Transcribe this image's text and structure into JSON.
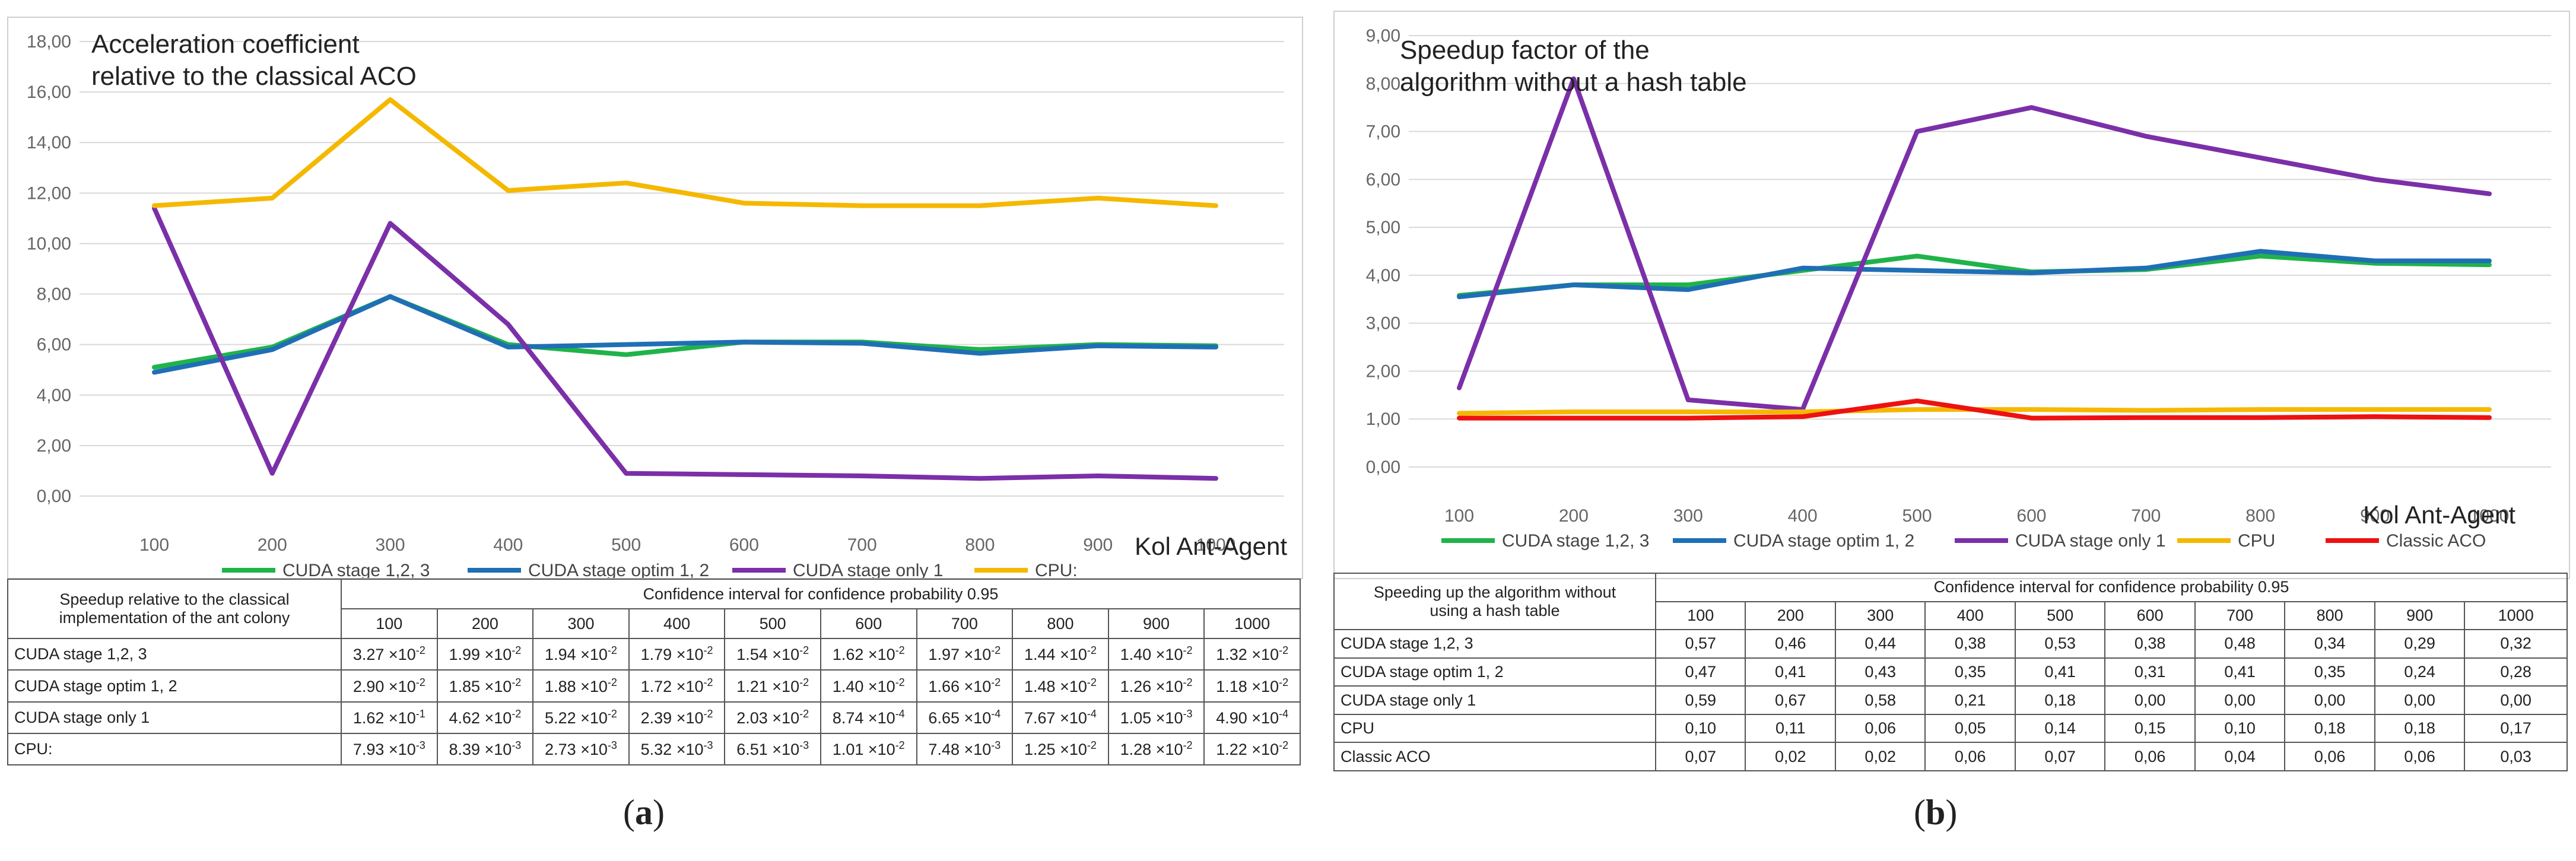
{
  "chart_data": [
    {
      "type": "line",
      "id": "a",
      "title_lines": [
        "Acceleration coefficient",
        "relative to the classical ACO"
      ],
      "xlabel": "Kol Ant-Agent",
      "ylabel": "",
      "categories": [
        "100",
        "200",
        "300",
        "400",
        "500",
        "600",
        "700",
        "800",
        "900",
        "1000"
      ],
      "ylim": [
        0,
        18
      ],
      "ytick_labels": [
        "0,00",
        "2,00",
        "4,00",
        "6,00",
        "8,00",
        "10,00",
        "12,00",
        "14,00",
        "16,00",
        "18,00"
      ],
      "series": [
        {
          "name": "CUDA stage 1,2, 3",
          "color": "#1fb34a",
          "values": [
            5.1,
            5.9,
            7.9,
            6.0,
            5.6,
            6.1,
            6.1,
            5.8,
            6.0,
            5.95
          ]
        },
        {
          "name": "CUDA stage optim 1, 2",
          "color": "#1f6fb5",
          "values": [
            4.9,
            5.8,
            7.9,
            5.9,
            6.0,
            6.1,
            6.05,
            5.65,
            5.95,
            5.9
          ]
        },
        {
          "name": "CUDA stage only 1",
          "color": "#7b2fa8",
          "values": [
            11.4,
            0.9,
            10.8,
            6.8,
            0.9,
            0.85,
            0.8,
            0.7,
            0.8,
            0.7
          ]
        },
        {
          "name": "CPU:",
          "color": "#f5b800",
          "values": [
            11.5,
            11.8,
            15.7,
            12.1,
            12.4,
            11.6,
            11.5,
            11.5,
            11.8,
            11.5
          ]
        }
      ]
    },
    {
      "type": "line",
      "id": "b",
      "title_lines": [
        "Speedup factor of the",
        "algorithm without a hash table"
      ],
      "xlabel": "Kol Ant-Agent",
      "ylabel": "",
      "categories": [
        "100",
        "200",
        "300",
        "400",
        "500",
        "600",
        "700",
        "800",
        "900",
        "1000"
      ],
      "ylim": [
        0,
        9
      ],
      "ytick_labels": [
        "0,00",
        "1,00",
        "2,00",
        "3,00",
        "4,00",
        "5,00",
        "6,00",
        "7,00",
        "8,00",
        "9,00"
      ],
      "series": [
        {
          "name": "CUDA stage 1,2, 3",
          "color": "#1fb34a",
          "values": [
            3.58,
            3.8,
            3.8,
            4.1,
            4.4,
            4.07,
            4.12,
            4.4,
            4.25,
            4.22
          ]
        },
        {
          "name": "CUDA stage optim 1, 2",
          "color": "#1f6fb5",
          "values": [
            3.55,
            3.8,
            3.7,
            4.15,
            4.1,
            4.05,
            4.15,
            4.5,
            4.3,
            4.3
          ]
        },
        {
          "name": "CUDA stage only 1",
          "color": "#7b2fa8",
          "values": [
            1.65,
            8.1,
            1.4,
            1.2,
            7.0,
            7.5,
            6.9,
            6.45,
            6.0,
            5.7
          ]
        },
        {
          "name": "CPU",
          "color": "#f5b800",
          "values": [
            1.12,
            1.15,
            1.15,
            1.15,
            1.2,
            1.2,
            1.18,
            1.2,
            1.2,
            1.2
          ]
        },
        {
          "name": "Classic ACO",
          "color": "#ee1111",
          "values": [
            1.02,
            1.02,
            1.02,
            1.05,
            1.38,
            1.02,
            1.03,
            1.03,
            1.05,
            1.03
          ]
        }
      ]
    }
  ],
  "table_a": {
    "row_header_line1": "Speedup relative to the classical",
    "row_header_line2": "implementation of the ant colony",
    "group_header": "Confidence interval for confidence probability 0.95",
    "columns": [
      "100",
      "200",
      "300",
      "400",
      "500",
      "600",
      "700",
      "800",
      "900",
      "1000"
    ],
    "rows": [
      {
        "label": "CUDA stage 1,2, 3",
        "cells": [
          {
            "m": "3.27",
            "e": "-2"
          },
          {
            "m": "1.99",
            "e": "-2"
          },
          {
            "m": "1.94",
            "e": "-2"
          },
          {
            "m": "1.79",
            "e": "-2"
          },
          {
            "m": "1.54",
            "e": "-2"
          },
          {
            "m": "1.62",
            "e": "-2"
          },
          {
            "m": "1.97",
            "e": "-2"
          },
          {
            "m": "1.44",
            "e": "-2"
          },
          {
            "m": "1.40",
            "e": "-2"
          },
          {
            "m": "1.32",
            "e": "-2"
          }
        ]
      },
      {
        "label": "CUDA stage optim 1, 2",
        "cells": [
          {
            "m": "2.90",
            "e": "-2"
          },
          {
            "m": "1.85",
            "e": "-2"
          },
          {
            "m": "1.88",
            "e": "-2"
          },
          {
            "m": "1.72",
            "e": "-2"
          },
          {
            "m": "1.21",
            "e": "-2"
          },
          {
            "m": "1.40",
            "e": "-2"
          },
          {
            "m": "1.66",
            "e": "-2"
          },
          {
            "m": "1.48",
            "e": "-2"
          },
          {
            "m": "1.26",
            "e": "-2"
          },
          {
            "m": "1.18",
            "e": "-2"
          }
        ]
      },
      {
        "label": "CUDA stage only 1",
        "cells": [
          {
            "m": "1.62",
            "e": "-1"
          },
          {
            "m": "4.62",
            "e": "-2"
          },
          {
            "m": "5.22",
            "e": "-2"
          },
          {
            "m": "2.39",
            "e": "-2"
          },
          {
            "m": "2.03",
            "e": "-2"
          },
          {
            "m": "8.74",
            "e": "-4"
          },
          {
            "m": "6.65",
            "e": "-4"
          },
          {
            "m": "7.67",
            "e": "-4"
          },
          {
            "m": "1.05",
            "e": "-3"
          },
          {
            "m": "4.90",
            "e": "-4"
          }
        ]
      },
      {
        "label": "CPU:",
        "cells": [
          {
            "m": "7.93",
            "e": "-3"
          },
          {
            "m": "8.39",
            "e": "-3"
          },
          {
            "m": "2.73",
            "e": "-3"
          },
          {
            "m": "5.32",
            "e": "-3"
          },
          {
            "m": "6.51",
            "e": "-3"
          },
          {
            "m": "1.01",
            "e": "-2"
          },
          {
            "m": "7.48",
            "e": "-3"
          },
          {
            "m": "1.25",
            "e": "-2"
          },
          {
            "m": "1.28",
            "e": "-2"
          },
          {
            "m": "1.22",
            "e": "-2"
          }
        ]
      }
    ]
  },
  "table_b": {
    "row_header_line1": "Speeding up the algorithm without",
    "row_header_line2": "using a hash table",
    "group_header": "Confidence interval for confidence probability 0.95",
    "columns": [
      "100",
      "200",
      "300",
      "400",
      "500",
      "600",
      "700",
      "800",
      "900",
      "1000"
    ],
    "rows": [
      {
        "label": "CUDA stage 1,2, 3",
        "cells": [
          "0,57",
          "0,46",
          "0,44",
          "0,38",
          "0,53",
          "0,38",
          "0,48",
          "0,34",
          "0,29",
          "0,32"
        ]
      },
      {
        "label": "CUDA stage optim 1, 2",
        "cells": [
          "0,47",
          "0,41",
          "0,43",
          "0,35",
          "0,41",
          "0,31",
          "0,41",
          "0,35",
          "0,24",
          "0,28"
        ]
      },
      {
        "label": "CUDA stage only 1",
        "cells": [
          "0,59",
          "0,67",
          "0,58",
          "0,21",
          "0,18",
          "0,00",
          "0,00",
          "0,00",
          "0,00",
          "0,00"
        ]
      },
      {
        "label": "CPU",
        "cells": [
          "0,10",
          "0,11",
          "0,06",
          "0,05",
          "0,14",
          "0,15",
          "0,10",
          "0,18",
          "0,18",
          "0,17"
        ]
      },
      {
        "label": "Classic ACO",
        "cells": [
          "0,07",
          "0,02",
          "0,02",
          "0,06",
          "0,07",
          "0,06",
          "0,04",
          "0,06",
          "0,06",
          "0,03"
        ]
      }
    ]
  },
  "labels": {
    "a_prefix": "(",
    "a_letter": "a",
    "a_suffix": ")",
    "b_prefix": "(",
    "b_letter": "b",
    "b_suffix": ")",
    "times_ten": "×10"
  }
}
